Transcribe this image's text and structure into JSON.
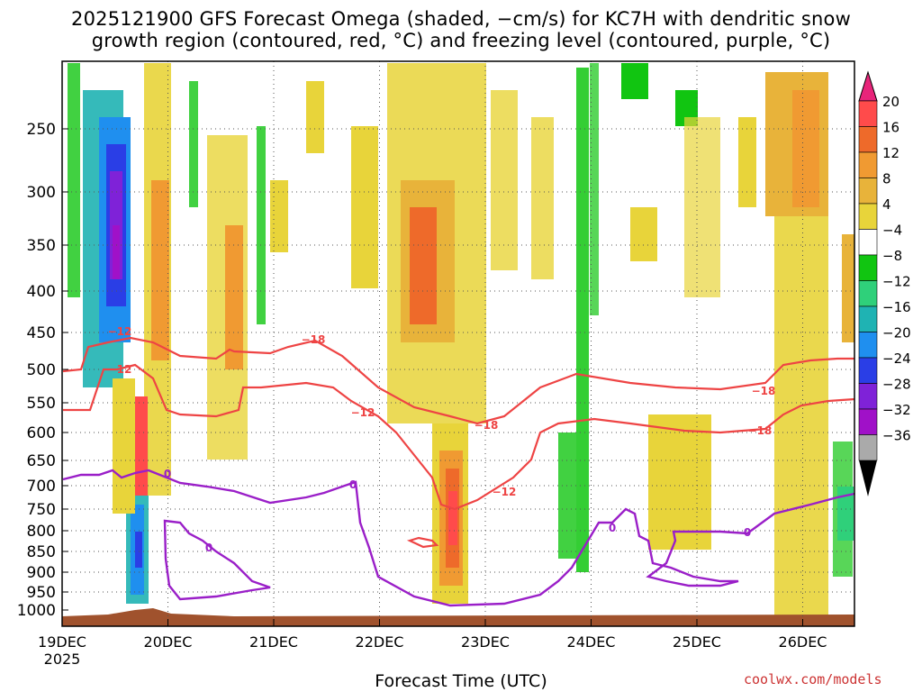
{
  "chart_data": {
    "type": "heatmap",
    "title_line1": "2025121900 GFS Forecast Omega (shaded, −cm/s) for KC7H with dendritic snow",
    "title_line2": "growth region (contoured, red, °C) and freezing level (contoured, purple, °C)",
    "xlabel": "Forecast Time (UTC)",
    "ylabel": "",
    "x_ticks": [
      "19DEC",
      "20DEC",
      "21DEC",
      "22DEC",
      "23DEC",
      "24DEC",
      "25DEC",
      "26DEC"
    ],
    "x_year": "2025",
    "y_ticks": [
      "250",
      "300",
      "350",
      "400",
      "450",
      "500",
      "550",
      "600",
      "650",
      "700",
      "750",
      "800",
      "850",
      "900",
      "950",
      "1000"
    ],
    "colorbar_labels": [
      "20",
      "16",
      "12",
      "8",
      "4",
      "−4",
      "−8",
      "−12",
      "−16",
      "−20",
      "−24",
      "−28",
      "−32",
      "−36"
    ],
    "colorbar_colors": [
      "#ff4b4b",
      "#ee6a2a",
      "#f09a32",
      "#e8b33a",
      "#e8d43a",
      "#ffffff",
      "#11c511",
      "#2fd07a",
      "#1fb3b3",
      "#1f8fef",
      "#2a3ee6",
      "#7f22d8",
      "#a011c8",
      "#aaaaaa"
    ],
    "contour_labels_red": [
      "−18",
      "−12",
      "−18",
      "−12",
      "−18",
      "−12",
      "−18",
      "−12"
    ],
    "contour_labels_purple": [
      "0",
      "0",
      "0",
      "0",
      "0"
    ],
    "credit": "coolwx.com/models"
  }
}
